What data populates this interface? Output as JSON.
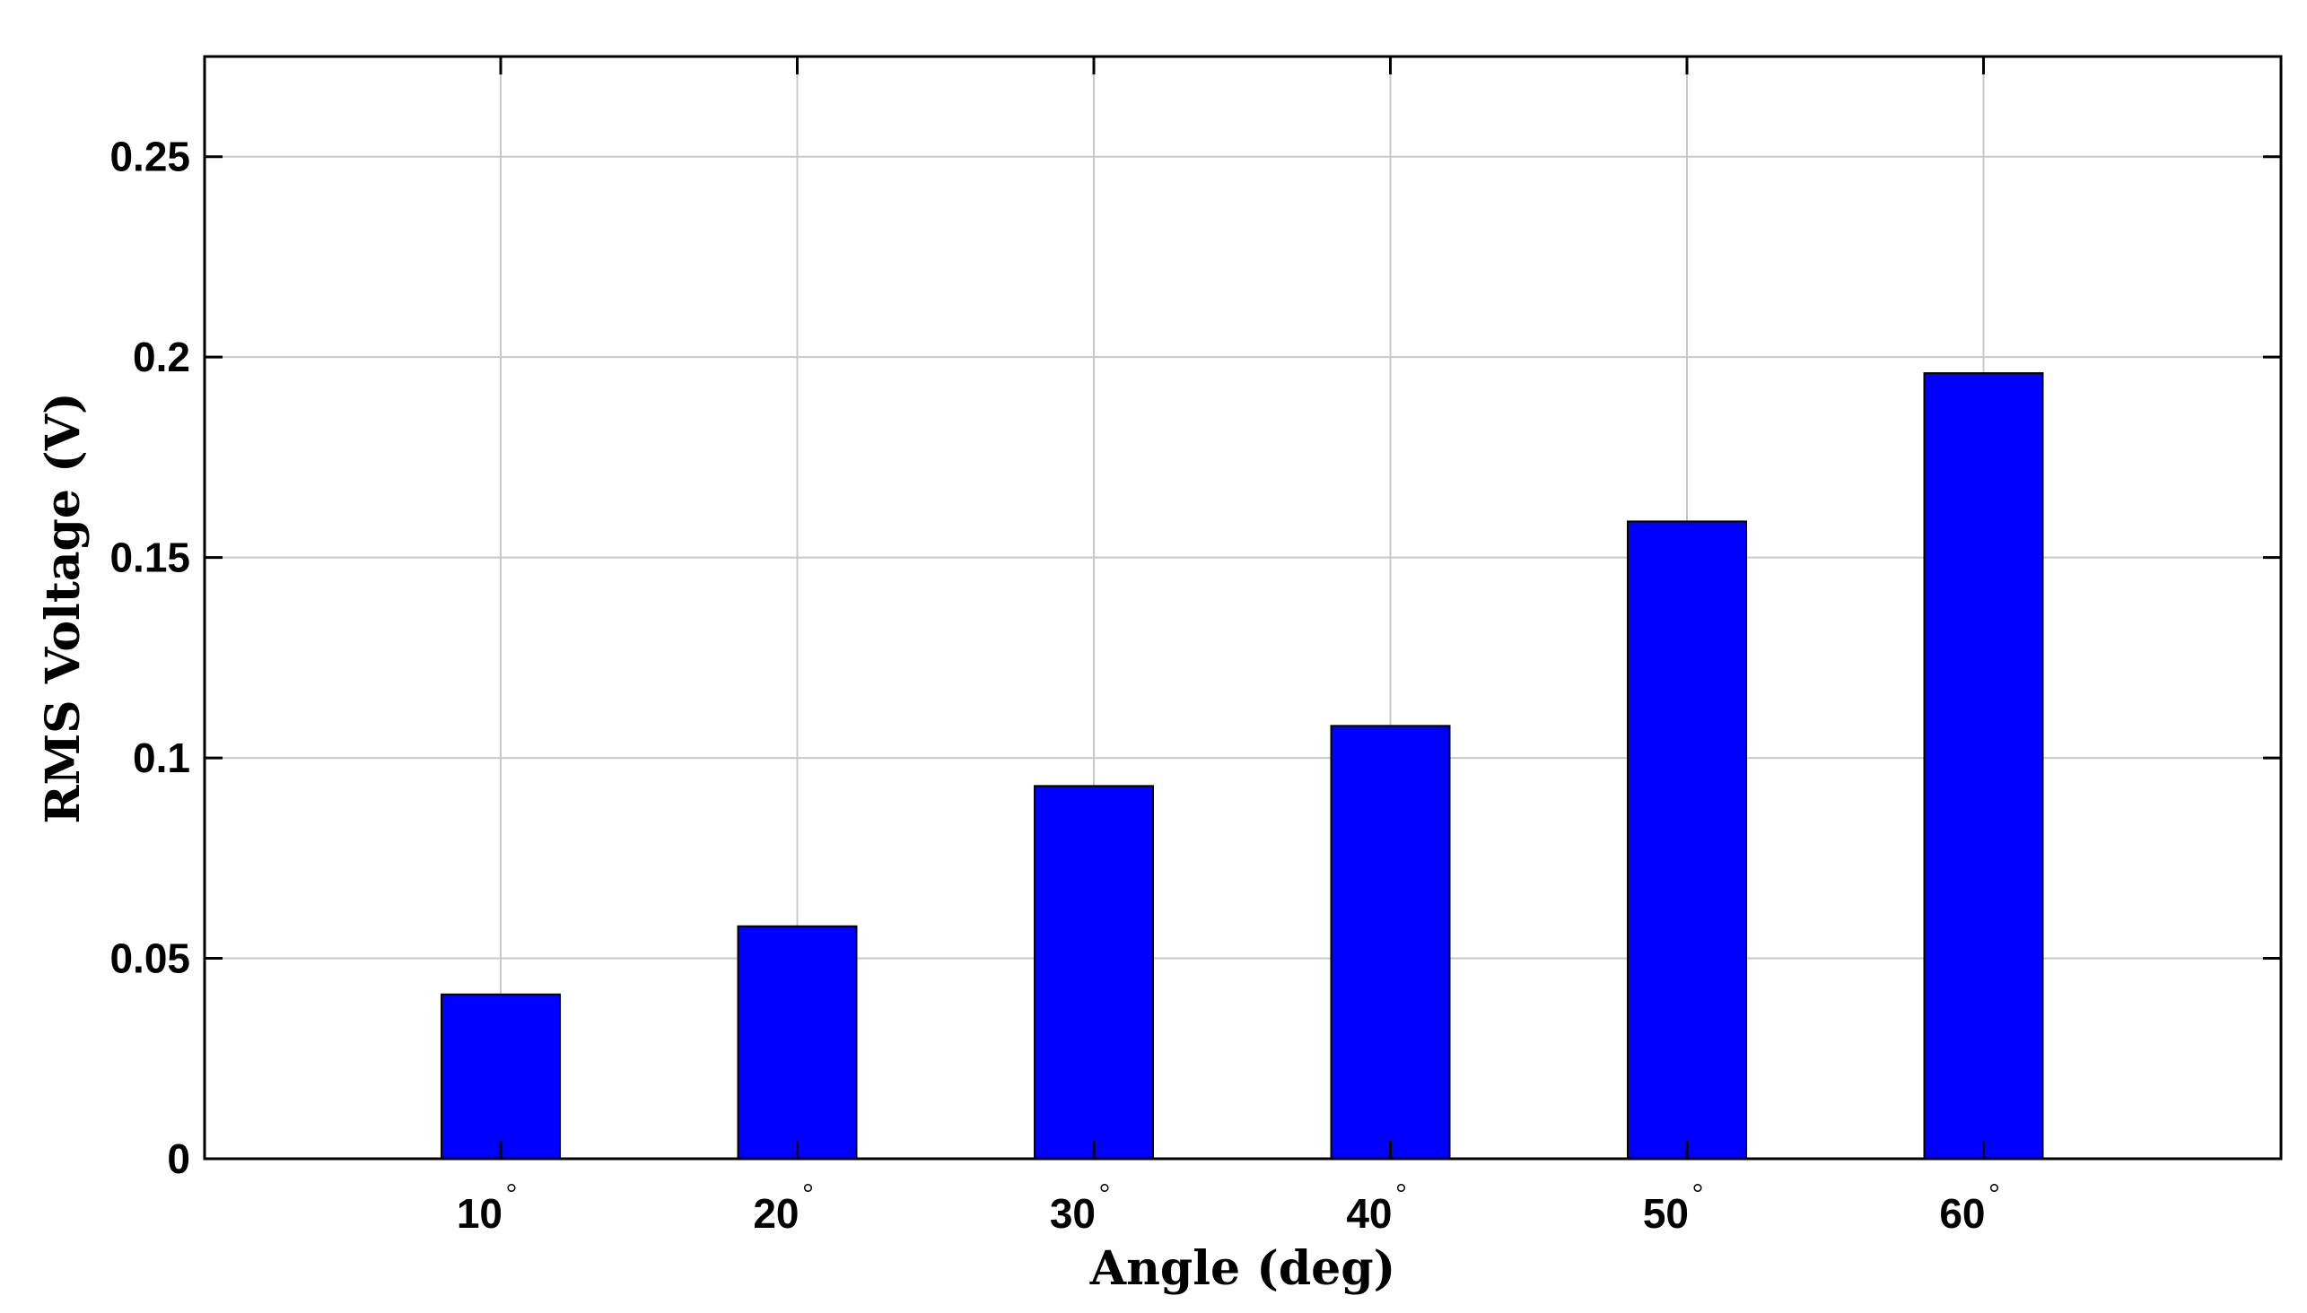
{
  "chart_data": {
    "type": "bar",
    "categories": [
      "10",
      "20",
      "30",
      "40",
      "50",
      "60"
    ],
    "degree_symbol": "°",
    "values": [
      0.041,
      0.058,
      0.093,
      0.108,
      0.159,
      0.196
    ],
    "title": "",
    "xlabel": "Angle (deg)",
    "ylabel": "RMS Voltage (V)",
    "ylim": [
      0,
      0.275
    ],
    "yticks": [
      0,
      0.05,
      0.1,
      0.15,
      0.2,
      0.25
    ],
    "ytick_labels": [
      "0",
      "0.05",
      "0.1",
      "0.15",
      "0.2",
      "0.25"
    ],
    "grid": true,
    "bar_color": "#0000ff",
    "bar_edge_color": "#000000",
    "grid_color": "#c8c8c8",
    "axis_color": "#000000"
  }
}
